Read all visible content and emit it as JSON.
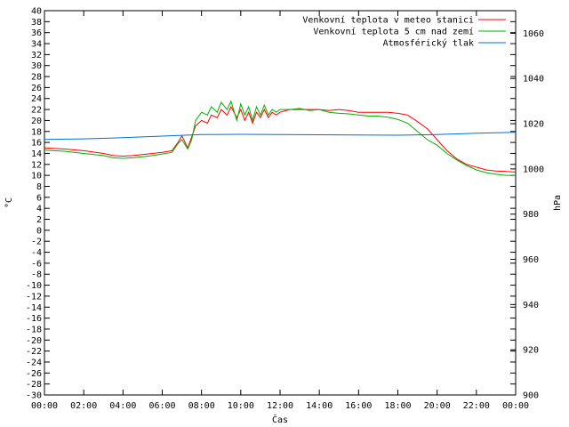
{
  "chart_data": {
    "type": "line",
    "xlabel": "Čas",
    "ylabel": "°C",
    "y2label": "hPa",
    "x_ticks": [
      "00:00",
      "02:00",
      "04:00",
      "06:00",
      "08:00",
      "10:00",
      "12:00",
      "14:00",
      "16:00",
      "18:00",
      "20:00",
      "22:00",
      "00:00"
    ],
    "xlim": [
      0,
      24
    ],
    "ylim": [
      -30,
      40
    ],
    "y_ticks": [
      40,
      38,
      36,
      34,
      32,
      30,
      28,
      26,
      24,
      22,
      20,
      18,
      16,
      14,
      12,
      10,
      8,
      6,
      4,
      2,
      0,
      -2,
      -4,
      -6,
      -8,
      -10,
      -12,
      -14,
      -16,
      -18,
      -20,
      -22,
      -24,
      -26,
      -28,
      -30
    ],
    "y2lim": [
      900,
      1070
    ],
    "y2_ticks": [
      1060,
      1040,
      1020,
      1000,
      980,
      960,
      940,
      920,
      900
    ],
    "grid": false,
    "legend_position": "top-right",
    "colors": {
      "red": "#ff0000",
      "green": "#00b000",
      "blue": "#0070d0"
    },
    "series": [
      {
        "name": "Venkovní teplota v meteo stanici",
        "color": "#ff0000",
        "axis": "left",
        "x": [
          0,
          1,
          2,
          3,
          3.5,
          4,
          4.5,
          5,
          5.5,
          6,
          6.5,
          6.8,
          7,
          7.3,
          7.5,
          7.7,
          8,
          8.3,
          8.5,
          8.8,
          9,
          9.3,
          9.5,
          9.8,
          10,
          10.2,
          10.4,
          10.6,
          10.8,
          11,
          11.2,
          11.4,
          11.6,
          11.8,
          12,
          12.5,
          13,
          13.5,
          14,
          14.5,
          15,
          15.5,
          16,
          16.5,
          17,
          17.5,
          18,
          18.5,
          19,
          19.5,
          20,
          20.5,
          21,
          21.5,
          22,
          22.5,
          23,
          23.5,
          24
        ],
        "y": [
          15,
          14.8,
          14.5,
          14,
          13.6,
          13.5,
          13.6,
          13.8,
          14,
          14.2,
          14.5,
          16,
          17.2,
          15,
          17,
          19,
          20,
          19.5,
          21,
          20.5,
          22,
          21,
          22.5,
          20.5,
          22,
          20,
          21.5,
          19.5,
          21.5,
          20.5,
          22,
          20.5,
          21.5,
          21,
          21.5,
          22,
          22,
          22,
          22,
          21.8,
          22,
          21.8,
          21.5,
          21.5,
          21.5,
          21.5,
          21.3,
          21,
          19.8,
          18.5,
          16.5,
          14.5,
          13,
          12,
          11.5,
          11,
          10.8,
          10.7,
          10.6
        ]
      },
      {
        "name": "Venkovní teplota 5 cm nad zemí",
        "color": "#00b000",
        "axis": "left",
        "x": [
          0,
          1,
          2,
          3,
          3.5,
          4,
          4.5,
          5,
          5.5,
          6,
          6.5,
          6.8,
          7,
          7.3,
          7.5,
          7.7,
          8,
          8.3,
          8.5,
          8.8,
          9,
          9.3,
          9.5,
          9.8,
          10,
          10.2,
          10.4,
          10.6,
          10.8,
          11,
          11.2,
          11.4,
          11.6,
          11.8,
          12,
          12.5,
          13,
          13.5,
          14,
          14.5,
          15,
          15.5,
          16,
          16.5,
          17,
          17.5,
          18,
          18.5,
          19,
          19.5,
          20,
          20.5,
          21,
          21.5,
          22,
          22.5,
          23,
          23.5,
          24
        ],
        "y": [
          14.6,
          14.4,
          14,
          13.6,
          13.2,
          13.1,
          13.2,
          13.4,
          13.6,
          13.9,
          14.2,
          15.8,
          16.5,
          14.8,
          16.5,
          20,
          21.5,
          21,
          22.5,
          21.5,
          23.3,
          22,
          23.5,
          20,
          23,
          21,
          22.5,
          20,
          22.5,
          21,
          22.8,
          21,
          22,
          21.5,
          22,
          22,
          22.2,
          21.8,
          22,
          21.5,
          21.3,
          21.2,
          21,
          20.8,
          20.8,
          20.6,
          20.2,
          19.5,
          18,
          16.5,
          15.5,
          14,
          12.8,
          11.8,
          11,
          10.5,
          10.2,
          10,
          10
        ]
      },
      {
        "name": "Atmosférický tlak",
        "color": "#0070d0",
        "axis": "right",
        "x": [
          0,
          2,
          4,
          6,
          8,
          10,
          12,
          14,
          16,
          18,
          20,
          22,
          24
        ],
        "y": [
          1013,
          1013.3,
          1013.8,
          1014.5,
          1015.2,
          1015.3,
          1015.2,
          1015.1,
          1015,
          1014.9,
          1015.2,
          1015.8,
          1016.2
        ]
      }
    ]
  }
}
